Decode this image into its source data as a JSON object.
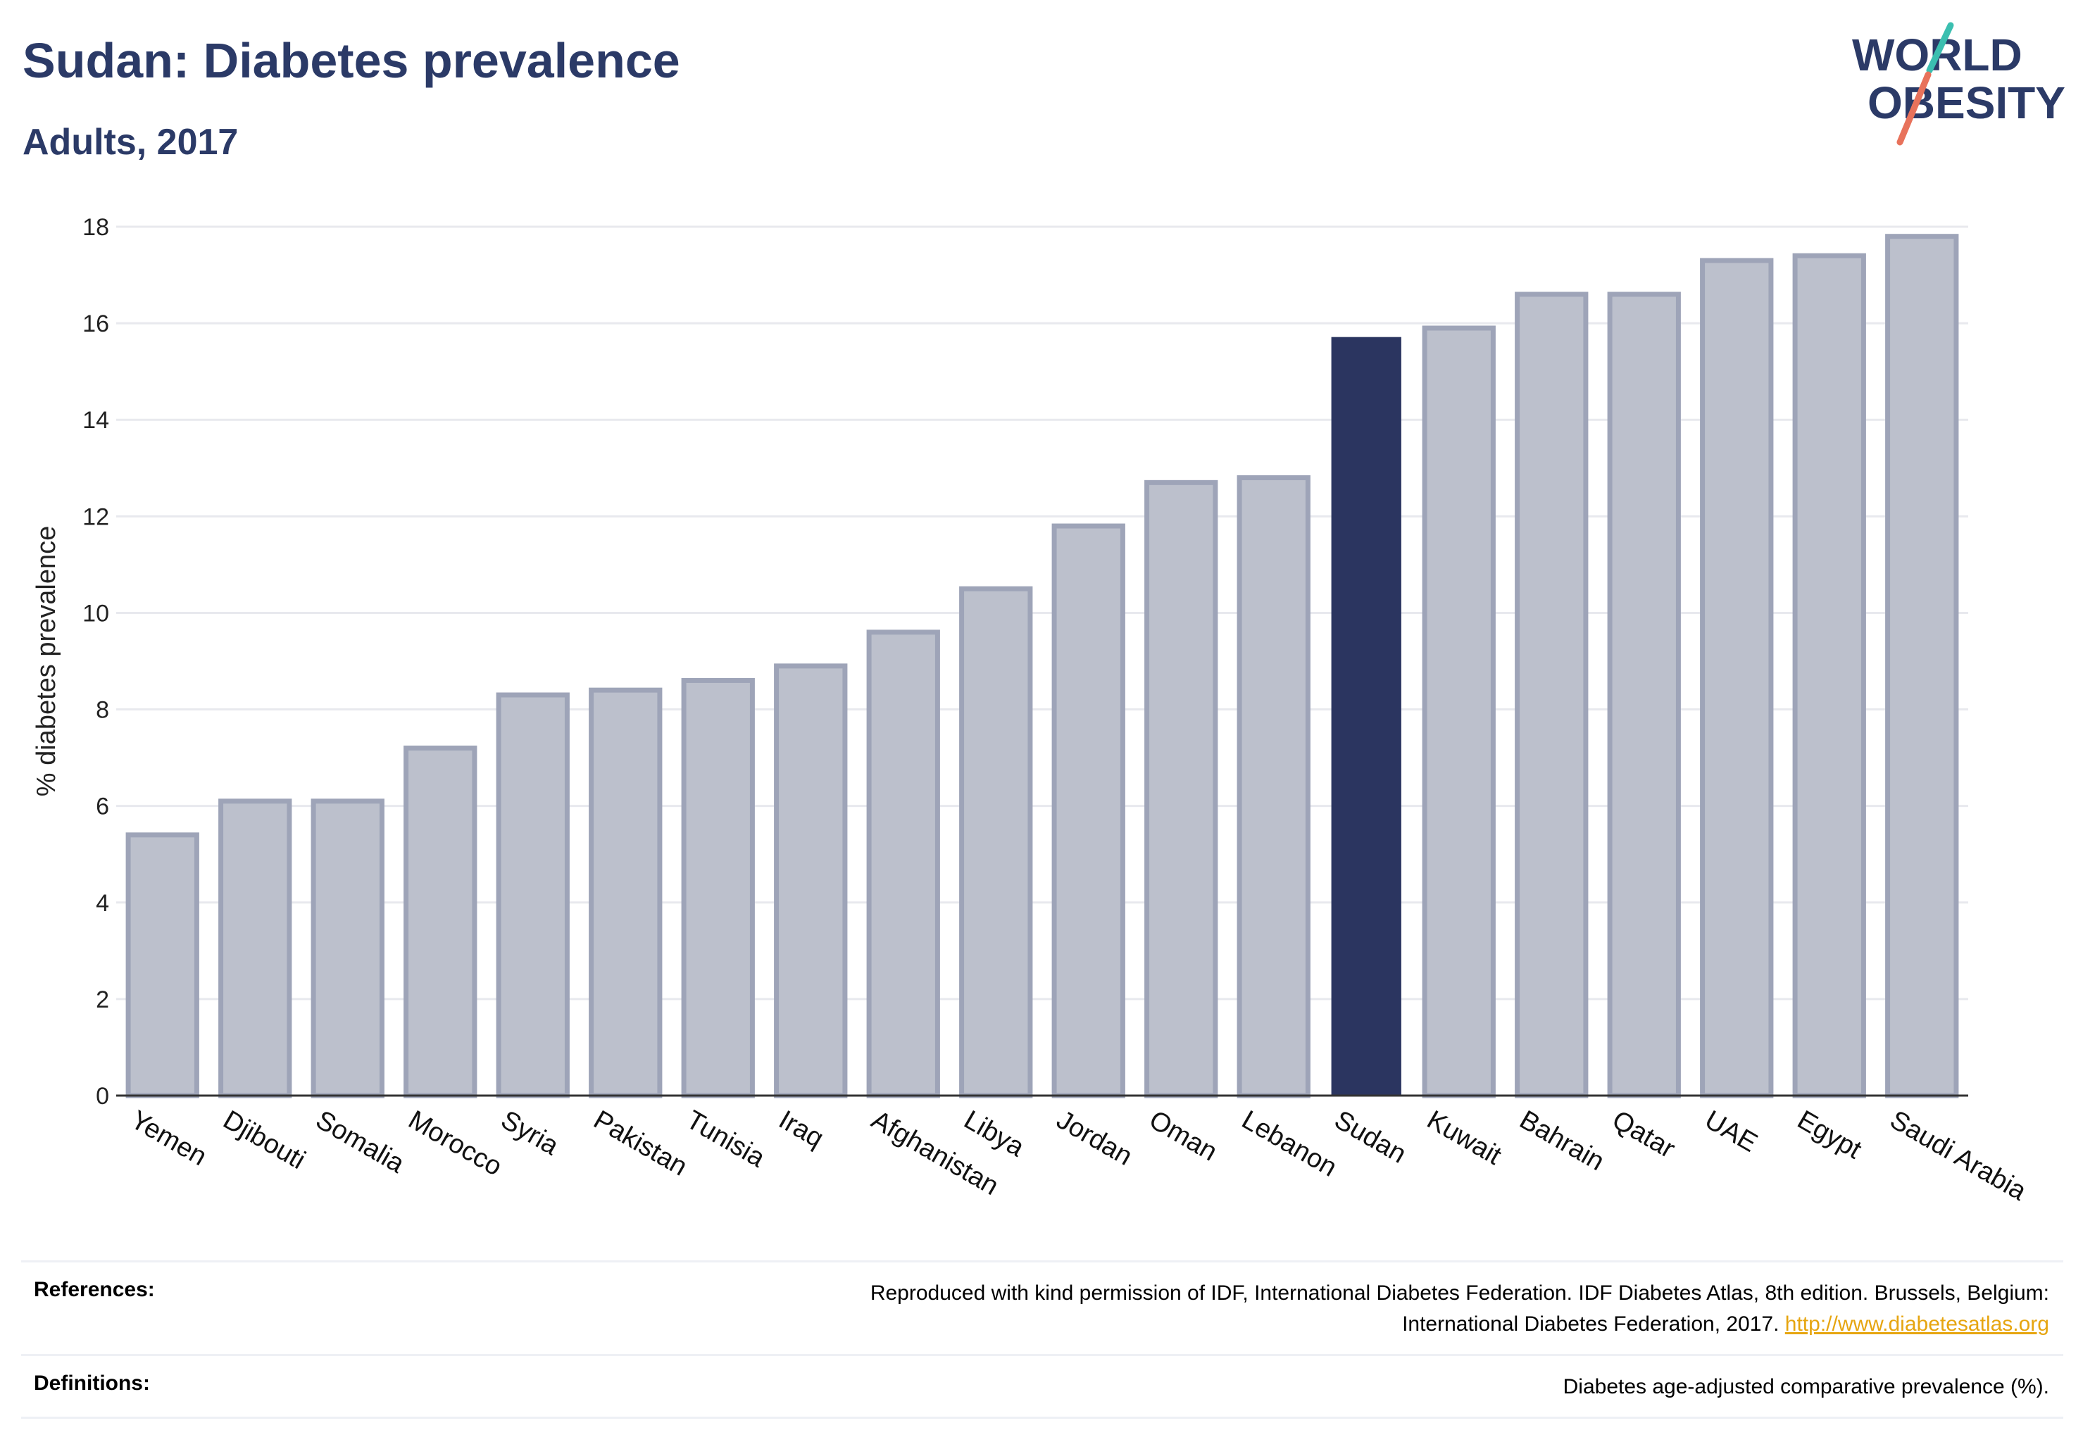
{
  "header": {
    "title": "Sudan: Diabetes prevalence",
    "subtitle": "Adults, 2017"
  },
  "logo": {
    "line1": "WORLD",
    "line2": "OBESITY",
    "colors": {
      "text": "#2b3a67",
      "slash_teal": "#3bbfb0",
      "slash_red": "#e8725b"
    }
  },
  "colors": {
    "highlight": "#2b3560",
    "bar_fill": "#bcc0cc",
    "bar_stroke": "#9ea4b8",
    "grid": "#e8e9ee"
  },
  "chart_data": {
    "type": "bar",
    "categories": [
      "Yemen",
      "Djibouti",
      "Somalia",
      "Morocco",
      "Syria",
      "Pakistan",
      "Tunisia",
      "Iraq",
      "Afghanistan",
      "Libya",
      "Jordan",
      "Oman",
      "Lebanon",
      "Sudan",
      "Kuwait",
      "Bahrain",
      "Qatar",
      "UAE",
      "Egypt",
      "Saudi Arabia"
    ],
    "values": [
      5.4,
      6.1,
      6.1,
      7.2,
      8.3,
      8.4,
      8.6,
      8.9,
      9.6,
      10.5,
      11.8,
      12.7,
      12.8,
      15.7,
      15.9,
      16.6,
      16.6,
      17.3,
      17.4,
      17.8
    ],
    "highlight": "Sudan",
    "ylabel": "% diabetes prevalence",
    "xlabel": "",
    "ylim": [
      0,
      18
    ],
    "yticks": [
      0,
      2,
      4,
      6,
      8,
      10,
      12,
      14,
      16,
      18
    ],
    "grid": true
  },
  "references": {
    "label": "References:",
    "line1": "Reproduced with kind permission of IDF, International Diabetes Federation. IDF Diabetes Atlas, 8th edition. Brussels, Belgium:",
    "line2": "International Diabetes Federation, 2017.",
    "link": "http://www.diabetesatlas.org"
  },
  "definitions": {
    "label": "Definitions:",
    "text": "Diabetes age-adjusted comparative prevalence (%)."
  }
}
